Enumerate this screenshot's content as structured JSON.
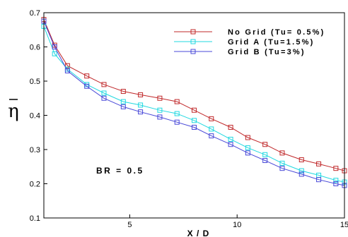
{
  "chart_data": {
    "type": "line",
    "title": "",
    "xlabel": "X / D",
    "ylabel": "η",
    "xlim": [
      1,
      15
    ],
    "ylim": [
      0.1,
      0.7
    ],
    "xticks": [
      5,
      10,
      15
    ],
    "yticks": [
      0.1,
      0.2,
      0.3,
      0.4,
      0.5,
      0.6,
      0.7
    ],
    "grid": false,
    "legend_position": "top-right",
    "annotation": "BR = 0.5",
    "series": [
      {
        "name": "No Grid (Tu= 0.5%)",
        "color": "#c0282a",
        "marker": "square",
        "x": [
          1.0,
          1.5,
          2.1,
          3.0,
          3.8,
          4.7,
          5.5,
          6.4,
          7.2,
          8.0,
          8.8,
          9.7,
          10.5,
          11.3,
          12.1,
          13.0,
          13.8,
          14.6,
          15.0
        ],
        "y": [
          0.68,
          0.605,
          0.545,
          0.515,
          0.49,
          0.47,
          0.46,
          0.45,
          0.44,
          0.415,
          0.39,
          0.365,
          0.335,
          0.315,
          0.29,
          0.27,
          0.258,
          0.245,
          0.238
        ]
      },
      {
        "name": "Grid A (Tu=1.5%)",
        "color": "#20d8e0",
        "marker": "square",
        "x": [
          1.0,
          1.5,
          2.1,
          3.0,
          3.8,
          4.7,
          5.5,
          6.4,
          7.2,
          8.0,
          8.8,
          9.7,
          10.5,
          11.3,
          12.1,
          13.0,
          13.8,
          14.6,
          15.0
        ],
        "y": [
          0.66,
          0.58,
          0.535,
          0.49,
          0.465,
          0.44,
          0.43,
          0.415,
          0.405,
          0.385,
          0.36,
          0.33,
          0.305,
          0.285,
          0.26,
          0.238,
          0.225,
          0.21,
          0.205
        ]
      },
      {
        "name": "Grid B (Tu=3%)",
        "color": "#4848d8",
        "marker": "square",
        "x": [
          1.0,
          1.5,
          2.1,
          3.0,
          3.8,
          4.7,
          5.5,
          6.4,
          7.2,
          8.0,
          8.8,
          9.7,
          10.5,
          11.3,
          12.1,
          13.0,
          13.8,
          14.6,
          15.0
        ],
        "y": [
          0.675,
          0.6,
          0.53,
          0.485,
          0.45,
          0.425,
          0.41,
          0.395,
          0.38,
          0.365,
          0.34,
          0.315,
          0.29,
          0.268,
          0.245,
          0.228,
          0.212,
          0.2,
          0.195
        ]
      }
    ]
  }
}
